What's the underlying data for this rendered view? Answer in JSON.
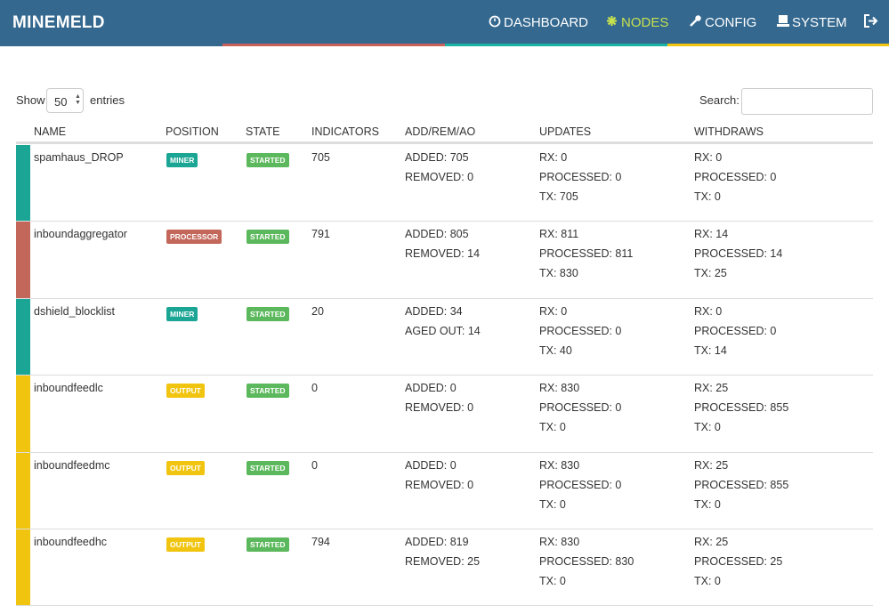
{
  "header": {
    "brand": "MINEMELD",
    "nav": [
      "DASHBOARD",
      "NODES",
      "CONFIG",
      "SYSTEM"
    ]
  },
  "controls": {
    "show": "Show",
    "page_size": "50",
    "entries": "entries",
    "search": "Search:"
  },
  "table": {
    "columns": [
      "NAME",
      "POSITION",
      "STATE",
      "INDICATORS",
      "ADD/REM/AO",
      "UPDATES",
      "WITHDRAWS"
    ],
    "rows": [
      {
        "name": "spamhaus_DROP",
        "position": "MINER",
        "color": "#1aa594",
        "state": "STARTED",
        "indicators": "705",
        "add_rem_ao": [
          "ADDED: 705",
          "REMOVED: 0"
        ],
        "updates": [
          "RX: 0",
          "PROCESSED: 0",
          "TX: 705"
        ],
        "withdraws": [
          "RX: 0",
          "PROCESSED: 0",
          "TX: 0"
        ]
      },
      {
        "name": "inboundaggregator",
        "position": "PROCESSOR",
        "color": "#c3675b",
        "state": "STARTED",
        "indicators": "791",
        "add_rem_ao": [
          "ADDED: 805",
          "REMOVED: 14"
        ],
        "updates": [
          "RX: 811",
          "PROCESSED: 811",
          "TX: 830"
        ],
        "withdraws": [
          "RX: 14",
          "PROCESSED: 14",
          "TX: 25"
        ]
      },
      {
        "name": "dshield_blocklist",
        "position": "MINER",
        "color": "#1aa594",
        "state": "STARTED",
        "indicators": "20",
        "add_rem_ao": [
          "ADDED: 34",
          "AGED OUT: 14"
        ],
        "updates": [
          "RX: 0",
          "PROCESSED: 0",
          "TX: 40"
        ],
        "withdraws": [
          "RX: 0",
          "PROCESSED: 0",
          "TX: 14"
        ]
      },
      {
        "name": "inboundfeedlc",
        "position": "OUTPUT",
        "color": "#f1c40f",
        "state": "STARTED",
        "indicators": "0",
        "add_rem_ao": [
          "ADDED: 0",
          "REMOVED: 0"
        ],
        "updates": [
          "RX: 830",
          "PROCESSED: 0",
          "TX: 0"
        ],
        "withdraws": [
          "RX: 25",
          "PROCESSED: 855",
          "TX: 0"
        ]
      },
      {
        "name": "inboundfeedmc",
        "position": "OUTPUT",
        "color": "#f1c40f",
        "state": "STARTED",
        "indicators": "0",
        "add_rem_ao": [
          "ADDED: 0",
          "REMOVED: 0"
        ],
        "updates": [
          "RX: 830",
          "PROCESSED: 0",
          "TX: 0"
        ],
        "withdraws": [
          "RX: 25",
          "PROCESSED: 855",
          "TX: 0"
        ]
      },
      {
        "name": "inboundfeedhc",
        "position": "OUTPUT",
        "color": "#f1c40f",
        "state": "STARTED",
        "indicators": "794",
        "add_rem_ao": [
          "ADDED: 819",
          "REMOVED: 25"
        ],
        "updates": [
          "RX: 830",
          "PROCESSED: 830",
          "TX: 0"
        ],
        "withdraws": [
          "RX: 25",
          "PROCESSED: 25",
          "TX: 0"
        ]
      }
    ]
  }
}
